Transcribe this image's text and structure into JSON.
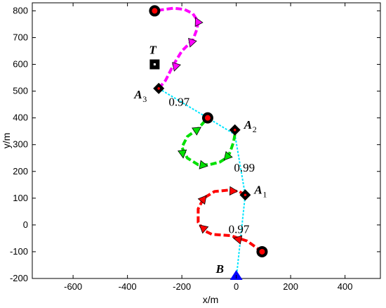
{
  "chart_data": {
    "type": "line",
    "xlabel": "x/m",
    "ylabel": "y/m",
    "xlim": [
      -750,
      530
    ],
    "ylim": [
      -200,
      830
    ],
    "xticks": [
      -600,
      -400,
      -200,
      0,
      200,
      400
    ],
    "yticks": [
      -200,
      -100,
      0,
      100,
      200,
      300,
      400,
      500,
      600,
      700,
      800
    ],
    "grid": false,
    "chain_color": "#00e5ff",
    "chain": [
      [
        0,
        -200
      ],
      [
        33,
        112
      ],
      [
        -5,
        338
      ],
      [
        -105,
        400
      ],
      [
        -285,
        510
      ]
    ],
    "chain_labels": [
      {
        "text": "0.97",
        "x": 10,
        "y": -30
      },
      {
        "text": "0.99",
        "x": 30,
        "y": 200
      },
      {
        "text": "0.97",
        "x": -210,
        "y": 445
      }
    ],
    "series": [
      {
        "color": "#ff0000",
        "points": [
          [
            95,
            -100
          ],
          [
            40,
            -60
          ],
          [
            -20,
            -40
          ],
          [
            -90,
            -35
          ],
          [
            -120,
            -20
          ],
          [
            -140,
            10
          ],
          [
            -140,
            60
          ],
          [
            -120,
            100
          ],
          [
            -80,
            125
          ],
          [
            -30,
            130
          ],
          [
            10,
            125
          ],
          [
            33,
            112
          ]
        ],
        "arrows": [
          [
            40,
            -60,
            -10,
            -50
          ],
          [
            -110,
            -22,
            -135,
            0
          ],
          [
            -138,
            75,
            -110,
            110
          ],
          [
            -40,
            128,
            5,
            126
          ]
        ]
      },
      {
        "color": "#00e000",
        "points": [
          [
            -5,
            338
          ],
          [
            -10,
            310
          ],
          [
            -20,
            280
          ],
          [
            -30,
            255
          ],
          [
            -60,
            235
          ],
          [
            -100,
            225
          ],
          [
            -140,
            225
          ],
          [
            -180,
            250
          ],
          [
            -200,
            290
          ],
          [
            -180,
            330
          ],
          [
            -140,
            360
          ],
          [
            -105,
            400
          ]
        ],
        "arrows": [
          [
            -25,
            265,
            -45,
            242
          ],
          [
            -150,
            228,
            -105,
            220
          ],
          [
            -200,
            290,
            -195,
            250
          ],
          [
            -160,
            345,
            -130,
            365
          ]
        ]
      },
      {
        "color": "#ff00ff",
        "points": [
          [
            -285,
            510
          ],
          [
            -260,
            540
          ],
          [
            -230,
            600
          ],
          [
            -200,
            650
          ],
          [
            -160,
            690
          ],
          [
            -145,
            730
          ],
          [
            -140,
            760
          ],
          [
            -160,
            790
          ],
          [
            -190,
            805
          ],
          [
            -230,
            810
          ],
          [
            -300,
            800
          ]
        ],
        "arrows": [
          [
            -215,
            620,
            -228,
            575
          ],
          [
            -155,
            710,
            -170,
            665
          ],
          [
            -135,
            745,
            -150,
            775
          ]
        ]
      }
    ],
    "circles": [
      [
        -300,
        800
      ],
      [
        -105,
        400
      ],
      [
        95,
        -100
      ]
    ],
    "diamonds": [
      {
        "x": -285,
        "y": 510,
        "label": "A",
        "sub": "3"
      },
      {
        "x": -5,
        "y": 355,
        "label": "A",
        "sub": "2"
      },
      {
        "x": 33,
        "y": 112,
        "label": "A",
        "sub": "1"
      }
    ],
    "target": {
      "x": -300,
      "y": 600,
      "label": "T"
    },
    "base": {
      "x": 0,
      "y": -200,
      "label": "B",
      "color": "#0000ff"
    }
  }
}
